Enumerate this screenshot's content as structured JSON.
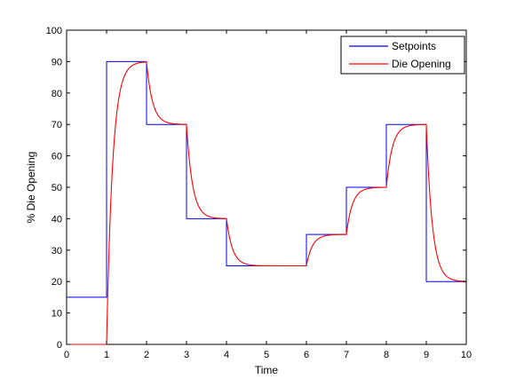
{
  "chart_data": {
    "type": "line",
    "xlabel": "Time",
    "ylabel": "% Die Opening",
    "xlim": [
      0,
      10
    ],
    "ylim": [
      0,
      100
    ],
    "xticks": [
      0,
      1,
      2,
      3,
      4,
      5,
      6,
      7,
      8,
      9,
      10
    ],
    "yticks": [
      0,
      10,
      20,
      30,
      40,
      50,
      60,
      70,
      80,
      90,
      100
    ],
    "grid": false,
    "legend_position": "top-right",
    "series": [
      {
        "name": "Setpoints",
        "color": "#0000ff",
        "style": "step",
        "x": [
          0,
          1,
          2,
          3,
          4,
          6,
          7,
          8,
          9,
          10
        ],
        "y": [
          15,
          90,
          70,
          40,
          25,
          35,
          50,
          70,
          20,
          20
        ]
      },
      {
        "name": "Die Opening",
        "color": "#ff0000",
        "style": "first-order-response",
        "x": [
          0,
          1,
          2,
          3,
          4,
          6,
          7,
          8,
          9
        ],
        "y": [
          0,
          90,
          70,
          40,
          25,
          35,
          50,
          70,
          20
        ],
        "y_start": 0,
        "time_constant": 0.15
      }
    ]
  }
}
